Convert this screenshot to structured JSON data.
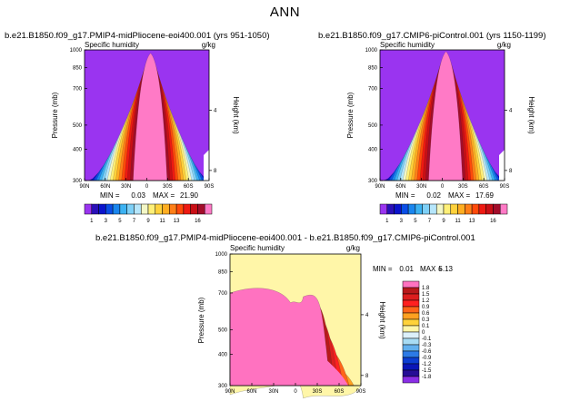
{
  "page": {
    "title": "ANN"
  },
  "chart_data": [
    {
      "type": "contour",
      "title": "b.e21.B1850.f09_g17.PMIP4-midPliocene-eoi400.001 (yrs 951-1050)",
      "variable": "Specific humidity",
      "units": "g/kg",
      "xlabel": "",
      "ylabel": "Pressure (mb)",
      "y2label": "Height (km)",
      "x_ticks": [
        "90N",
        "60N",
        "30N",
        "0",
        "30S",
        "60S",
        "90S"
      ],
      "y_ticks": [
        "300",
        "400",
        "500",
        "700",
        "850",
        "1000"
      ],
      "y2_ticks": [
        "8",
        "4"
      ],
      "ylim": [
        1000,
        300
      ],
      "stats": {
        "min_label": "MIN =",
        "min": "0.03",
        "max_label": "MAX =",
        "max": "21.90"
      },
      "peak": 21.9,
      "colorbar": {
        "labels": [
          "1",
          "3",
          "5",
          "7",
          "9",
          "11",
          "13",
          "16"
        ],
        "colors": [
          "#9a34f0",
          "#2a10b8",
          "#0b14cc",
          "#0a4ee6",
          "#1a86ee",
          "#3cb2f2",
          "#7ed0f7",
          "#b6e6fb",
          "#f3f7c6",
          "#fff078",
          "#ffd23c",
          "#ffae22",
          "#ff7f18",
          "#ff4a0a",
          "#ee1a12",
          "#c90f16",
          "#a30d2a",
          "#ff7ac6"
        ]
      }
    },
    {
      "type": "contour",
      "title": "b.e21.B1850.f09_g17.CMIP6-piControl.001 (yrs 1150-1199)",
      "variable": "Specific humidity",
      "units": "g/kg",
      "xlabel": "",
      "ylabel": "Pressure (mb)",
      "y2label": "Height (km)",
      "x_ticks": [
        "90N",
        "60N",
        "30N",
        "0",
        "30S",
        "60S",
        "90S"
      ],
      "y_ticks": [
        "300",
        "400",
        "500",
        "700",
        "850",
        "1000"
      ],
      "y2_ticks": [
        "8",
        "4"
      ],
      "ylim": [
        1000,
        300
      ],
      "stats": {
        "min_label": "MIN =",
        "min": "0.02",
        "max_label": "MAX =",
        "max": "17.69"
      },
      "peak": 17.69,
      "colorbar": {
        "labels": [
          "1",
          "3",
          "5",
          "7",
          "9",
          "11",
          "13",
          "16"
        ],
        "colors": [
          "#9a34f0",
          "#2a10b8",
          "#0b14cc",
          "#0a4ee6",
          "#1a86ee",
          "#3cb2f2",
          "#7ed0f7",
          "#b6e6fb",
          "#f3f7c6",
          "#fff078",
          "#ffd23c",
          "#ffae22",
          "#ff7f18",
          "#ff4a0a",
          "#ee1a12",
          "#c90f16",
          "#a30d2a",
          "#ff7ac6"
        ]
      }
    },
    {
      "type": "contour",
      "title": "b.e21.B1850.f09_g17.PMIP4-midPliocene-eoi400.001  -  b.e21.B1850.f09_g17.CMIP6-piControl.001",
      "variable": "Specific humidity",
      "units": "g/kg",
      "xlabel": "",
      "ylabel": "Pressure (mb)",
      "y2label": "Height (km)",
      "x_ticks": [
        "90N",
        "60N",
        "30N",
        "0",
        "30S",
        "60S",
        "90S"
      ],
      "y_ticks": [
        "300",
        "400",
        "500",
        "700",
        "850",
        "1000"
      ],
      "y2_ticks": [
        "8",
        "4"
      ],
      "ylim": [
        1000,
        300
      ],
      "stats": {
        "min_label": "MIN =",
        "min": "0.01",
        "max_label": "MAX =",
        "max": "5.13"
      },
      "colorbar": {
        "labels": [
          "1.8",
          "1.5",
          "1.2",
          "0.9",
          "0.6",
          "0.3",
          "0.1",
          "0",
          "-0.1",
          "-0.3",
          "-0.6",
          "-0.9",
          "-1.2",
          "-1.5",
          "-1.8"
        ],
        "colors": [
          "#ff72c0",
          "#b8191b",
          "#dc1e1e",
          "#ff2020",
          "#ff6418",
          "#ffa020",
          "#ffd23a",
          "#fff6a8",
          "#dcf0fa",
          "#a8dcf4",
          "#62b0ee",
          "#2c7ae6",
          "#0c3ed2",
          "#0a16b8",
          "#260e96",
          "#8a2ee6"
        ]
      }
    }
  ]
}
